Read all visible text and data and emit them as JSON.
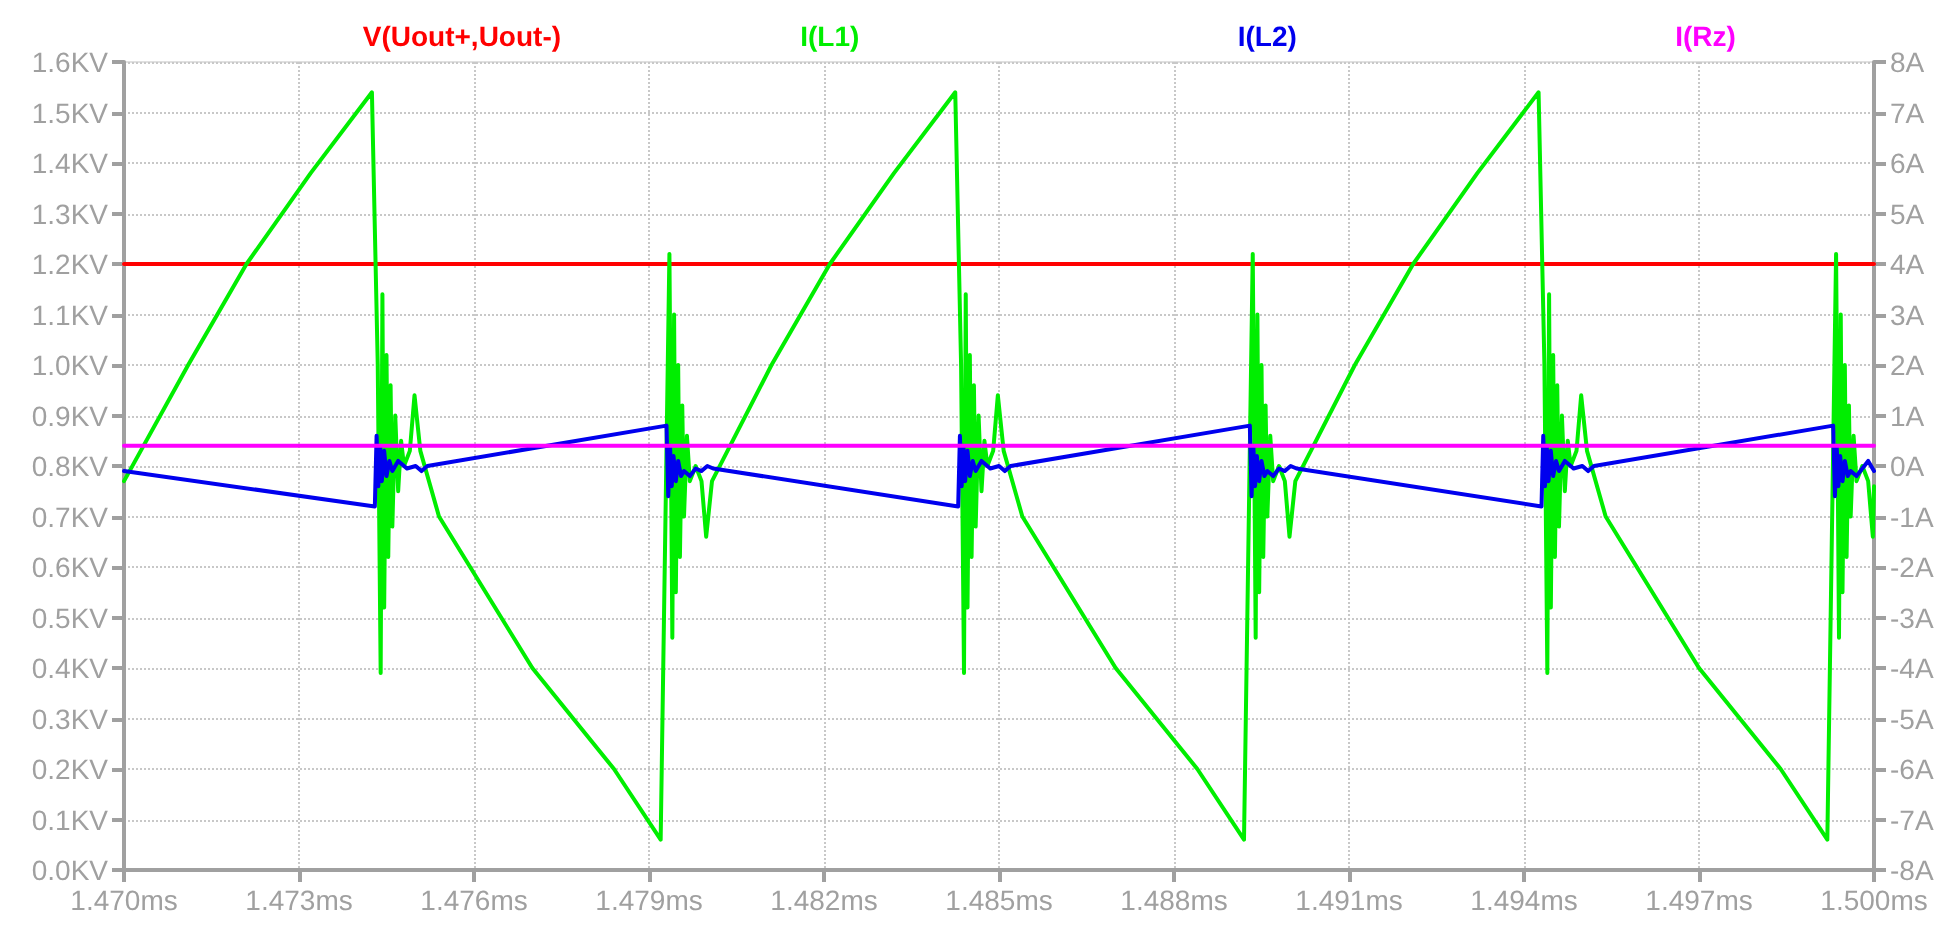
{
  "chart_data": {
    "type": "line",
    "legend": "top",
    "grid": true,
    "marker": "none",
    "line_style": "solid",
    "xlim": [
      1.47,
      1.5
    ],
    "xticks": [
      {
        "value": 1.47,
        "label": "1.470ms"
      },
      {
        "value": 1.473,
        "label": "1.473ms"
      },
      {
        "value": 1.476,
        "label": "1.476ms"
      },
      {
        "value": 1.479,
        "label": "1.479ms"
      },
      {
        "value": 1.482,
        "label": "1.482ms"
      },
      {
        "value": 1.485,
        "label": "1.485ms"
      },
      {
        "value": 1.488,
        "label": "1.488ms"
      },
      {
        "value": 1.491,
        "label": "1.491ms"
      },
      {
        "value": 1.494,
        "label": "1.494ms"
      },
      {
        "value": 1.497,
        "label": "1.497ms"
      },
      {
        "value": 1.5,
        "label": "1.500ms"
      }
    ],
    "ylim": [
      0,
      1.6
    ],
    "yticks": [
      {
        "value": 0,
        "label": "0.0KV"
      },
      {
        "value": 0.1,
        "label": "0.1KV"
      },
      {
        "value": 0.2,
        "label": "0.2KV"
      },
      {
        "value": 0.3,
        "label": "0.3KV"
      },
      {
        "value": 0.4,
        "label": "0.4KV"
      },
      {
        "value": 0.5,
        "label": "0.5KV"
      },
      {
        "value": 0.6,
        "label": "0.6KV"
      },
      {
        "value": 0.7,
        "label": "0.7KV"
      },
      {
        "value": 0.8,
        "label": "0.8KV"
      },
      {
        "value": 0.9,
        "label": "0.9KV"
      },
      {
        "value": 1.0,
        "label": "1.0KV"
      },
      {
        "value": 1.1,
        "label": "1.1KV"
      },
      {
        "value": 1.2,
        "label": "1.2KV"
      },
      {
        "value": 1.3,
        "label": "1.3KV"
      },
      {
        "value": 1.4,
        "label": "1.4KV"
      },
      {
        "value": 1.5,
        "label": "1.5KV"
      },
      {
        "value": 1.6,
        "label": "1.6KV"
      }
    ],
    "y2lim": [
      -8,
      8
    ],
    "y2ticks": [
      {
        "value": -8,
        "label": "-8A"
      },
      {
        "value": -7,
        "label": "-7A"
      },
      {
        "value": -6,
        "label": "-6A"
      },
      {
        "value": -5,
        "label": "-5A"
      },
      {
        "value": -4,
        "label": "-4A"
      },
      {
        "value": -3,
        "label": "-3A"
      },
      {
        "value": -2,
        "label": "-2A"
      },
      {
        "value": -1,
        "label": "-1A"
      },
      {
        "value": 0,
        "label": "0A"
      },
      {
        "value": 1,
        "label": "1A"
      },
      {
        "value": 2,
        "label": "2A"
      },
      {
        "value": 3,
        "label": "3A"
      },
      {
        "value": 4,
        "label": "4A"
      },
      {
        "value": 5,
        "label": "5A"
      },
      {
        "value": 6,
        "label": "6A"
      },
      {
        "value": 7,
        "label": "7A"
      },
      {
        "value": 8,
        "label": "8A"
      }
    ],
    "series": [
      {
        "name": "V(Uout+,Uout-)",
        "color": "#ff0000",
        "x": [
          1.47,
          1.5
        ],
        "values": [
          1.2,
          1.2
        ]
      },
      {
        "name": "I(L1)",
        "color": "#00ee00",
        "axis": "y2",
        "x": [
          1.47,
          1.4711,
          1.4721,
          1.4732,
          1.47425,
          1.47435,
          1.4744,
          1.47443,
          1.47446,
          1.4745,
          1.47453,
          1.47457,
          1.4746,
          1.47465,
          1.4747,
          1.47475,
          1.4748,
          1.4749,
          1.47498,
          1.47508,
          1.4754,
          1.477,
          1.4784,
          1.4792,
          1.47935,
          1.4794,
          1.47943,
          1.47946,
          1.4795,
          1.47953,
          1.47957,
          1.4796,
          1.47965,
          1.4797,
          1.4798,
          1.4799,
          1.47998,
          1.48008,
          1.4811,
          1.4821,
          1.4832,
          1.48425,
          1.48435,
          1.4844,
          1.48443,
          1.48446,
          1.4845,
          1.48453,
          1.48457,
          1.4846,
          1.48465,
          1.4847,
          1.48475,
          1.4848,
          1.4849,
          1.48498,
          1.48508,
          1.4854,
          1.487,
          1.4884,
          1.4892,
          1.48935,
          1.4894,
          1.48943,
          1.48946,
          1.4895,
          1.48953,
          1.48957,
          1.4896,
          1.48965,
          1.4897,
          1.4898,
          1.4899,
          1.48998,
          1.49008,
          1.4911,
          1.4921,
          1.4932,
          1.49425,
          1.49435,
          1.4944,
          1.49443,
          1.49446,
          1.4945,
          1.49453,
          1.49457,
          1.4946,
          1.49465,
          1.4947,
          1.49475,
          1.4948,
          1.4949,
          1.49498,
          1.49508,
          1.4954,
          1.497,
          1.4984,
          1.4992,
          1.49935,
          1.4994,
          1.49943,
          1.49946,
          1.4995,
          1.49953,
          1.49957,
          1.4996,
          1.49965,
          1.4997,
          1.4998,
          1.4999,
          1.49998,
          1.5
        ],
        "values": [
          -0.3,
          2.0,
          4.0,
          5.8,
          7.4,
          2.0,
          -4.1,
          3.4,
          -2.8,
          2.2,
          -1.8,
          1.6,
          -1.2,
          1.0,
          -0.5,
          0.5,
          0.0,
          0.3,
          1.4,
          0.3,
          -1.0,
          -4.0,
          -6.0,
          -7.4,
          4.2,
          -3.4,
          3.0,
          -2.5,
          2.0,
          -1.8,
          1.2,
          -1.0,
          0.6,
          -0.3,
          0.0,
          -0.3,
          -1.4,
          -0.3,
          2.0,
          4.0,
          5.8,
          7.4,
          2.0,
          -4.1,
          3.4,
          -2.8,
          2.2,
          -1.8,
          1.6,
          -1.2,
          1.0,
          -0.5,
          0.5,
          0.0,
          0.3,
          1.4,
          0.3,
          -1.0,
          -4.0,
          -6.0,
          -7.4,
          4.2,
          -3.4,
          3.0,
          -2.5,
          2.0,
          -1.8,
          1.2,
          -1.0,
          0.6,
          -0.3,
          0.0,
          -0.3,
          -1.4,
          -0.3,
          2.0,
          4.0,
          5.8,
          7.4,
          2.0,
          -4.1,
          3.4,
          -2.8,
          2.2,
          -1.8,
          1.6,
          -1.2,
          1.0,
          -0.5,
          0.5,
          0.0,
          0.3,
          1.4,
          0.3,
          -1.0,
          -4.0,
          -6.0,
          -7.4,
          4.2,
          -3.4,
          3.0,
          -2.5,
          2.0,
          -1.8,
          1.2,
          -1.0,
          0.6,
          -0.3,
          0.0,
          -0.3,
          -1.4,
          -0.4
        ]
      },
      {
        "name": "I(L2)",
        "color": "#0000ee",
        "axis": "y2",
        "x": [
          1.47,
          1.4743,
          1.47433,
          1.47436,
          1.47439,
          1.47442,
          1.47446,
          1.4745,
          1.47455,
          1.4746,
          1.4747,
          1.47485,
          1.475,
          1.4751,
          1.4752,
          1.4793,
          1.47933,
          1.47936,
          1.47939,
          1.47942,
          1.47946,
          1.4795,
          1.47955,
          1.4796,
          1.4797,
          1.4798,
          1.4799,
          1.48,
          1.4801,
          1.4843,
          1.48433,
          1.48436,
          1.48439,
          1.48442,
          1.48446,
          1.4845,
          1.48455,
          1.4846,
          1.4847,
          1.48485,
          1.485,
          1.4851,
          1.4852,
          1.4893,
          1.48933,
          1.48936,
          1.48939,
          1.48942,
          1.48946,
          1.4895,
          1.48955,
          1.4896,
          1.4897,
          1.4898,
          1.4899,
          1.49,
          1.4901,
          1.4943,
          1.49433,
          1.49436,
          1.49439,
          1.49442,
          1.49446,
          1.4945,
          1.49455,
          1.4946,
          1.4947,
          1.49485,
          1.495,
          1.4951,
          1.4952,
          1.4993,
          1.49933,
          1.49936,
          1.49939,
          1.49942,
          1.49946,
          1.4995,
          1.49955,
          1.4996,
          1.4997,
          1.4998,
          1.4999,
          1.5
        ],
        "values": [
          -0.1,
          -0.8,
          0.6,
          -0.4,
          0.4,
          -0.3,
          0.3,
          -0.2,
          0.1,
          -0.1,
          0.1,
          -0.05,
          0.0,
          -0.1,
          0.0,
          0.8,
          -0.6,
          0.4,
          -0.4,
          0.2,
          -0.3,
          0.1,
          -0.2,
          -0.1,
          -0.2,
          -0.05,
          -0.1,
          0.0,
          -0.05,
          -0.8,
          0.6,
          -0.4,
          0.4,
          -0.3,
          0.3,
          -0.2,
          0.1,
          -0.1,
          0.1,
          -0.05,
          0.0,
          -0.1,
          0.0,
          0.8,
          -0.6,
          0.4,
          -0.4,
          0.2,
          -0.3,
          0.1,
          -0.2,
          -0.1,
          -0.2,
          -0.05,
          -0.1,
          0.0,
          -0.05,
          -0.8,
          0.6,
          -0.4,
          0.4,
          -0.3,
          0.3,
          -0.2,
          0.1,
          -0.1,
          0.1,
          -0.05,
          0.0,
          -0.1,
          0.0,
          0.8,
          -0.6,
          0.4,
          -0.4,
          0.2,
          -0.3,
          0.1,
          -0.2,
          -0.1,
          -0.2,
          -0.05,
          0.1,
          -0.1
        ]
      },
      {
        "name": "I(Rz)",
        "color": "#ff00ff",
        "axis": "y2",
        "x": [
          1.47,
          1.5
        ],
        "values": [
          0.4,
          0.4
        ]
      }
    ]
  }
}
